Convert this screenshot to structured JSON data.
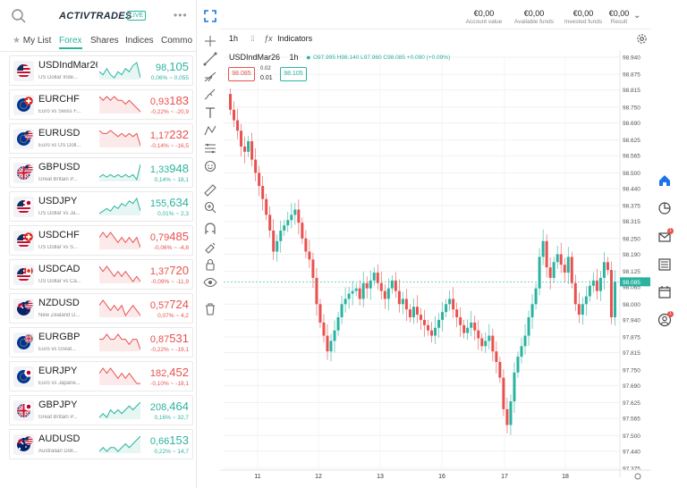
{
  "header": {
    "logo": "ACTIVTRADES",
    "live": "LIVE"
  },
  "tabs": [
    {
      "label": "My List",
      "active": false
    },
    {
      "label": "Forex",
      "active": true
    },
    {
      "label": "Shares",
      "active": false
    },
    {
      "label": "Indices",
      "active": false
    },
    {
      "label": "Commo",
      "active": false
    }
  ],
  "instruments": [
    {
      "symbol": "USDIndMar26",
      "desc": "US Dollar Inde...",
      "flags": [
        "us",
        "none"
      ],
      "price_main": "98,",
      "price_big": "105",
      "change": "0,06% ~ 0,055",
      "dir": "up",
      "spark": [
        6,
        5,
        7,
        5,
        4,
        6,
        5,
        7,
        6,
        8,
        9,
        4
      ]
    },
    {
      "symbol": "EURCHF",
      "desc": "Euro vs Swiss F...",
      "flags": [
        "eu",
        "ch"
      ],
      "price_main": "0,93",
      "price_big": "183",
      "change": "-0,22% ~ -20,9",
      "dir": "down",
      "spark": [
        8,
        7,
        8,
        7,
        8,
        7,
        7,
        6,
        7,
        6,
        5,
        4
      ]
    },
    {
      "symbol": "EURUSD",
      "desc": "Euro vs US Doll...",
      "flags": [
        "eu",
        "us"
      ],
      "price_main": "1,17",
      "price_big": "232",
      "change": "-0,14% ~ -16,5",
      "dir": "down",
      "spark": [
        8,
        7,
        7,
        8,
        7,
        6,
        7,
        6,
        7,
        6,
        7,
        3
      ]
    },
    {
      "symbol": "GBPUSD",
      "desc": "Great Britain P...",
      "flags": [
        "gb",
        "us"
      ],
      "price_main": "1,33",
      "price_big": "948",
      "change": "0,14% ~ 18,1",
      "dir": "up",
      "spark": [
        4,
        5,
        4,
        5,
        4,
        5,
        4,
        5,
        4,
        5,
        3,
        9
      ]
    },
    {
      "symbol": "USDJPY",
      "desc": "US Dollar vs Ja...",
      "flags": [
        "us",
        "jp"
      ],
      "price_main": "155,",
      "price_big": "634",
      "change": "0,01% ~ 2,3",
      "dir": "up",
      "spark": [
        3,
        4,
        5,
        4,
        6,
        5,
        7,
        6,
        8,
        7,
        9,
        4
      ]
    },
    {
      "symbol": "USDCHF",
      "desc": "US Dollar vs S...",
      "flags": [
        "us",
        "ch"
      ],
      "price_main": "0,79",
      "price_big": "485",
      "change": "-0,06% ~ -4,8",
      "dir": "down",
      "spark": [
        6,
        7,
        6,
        7,
        6,
        5,
        6,
        5,
        6,
        5,
        6,
        4
      ]
    },
    {
      "symbol": "USDCAD",
      "desc": "US Dollar vs Ca...",
      "flags": [
        "us",
        "ca"
      ],
      "price_main": "1,37",
      "price_big": "720",
      "change": "-0,09% ~ -11,9",
      "dir": "down",
      "spark": [
        8,
        7,
        8,
        7,
        6,
        7,
        6,
        7,
        6,
        5,
        6,
        5
      ]
    },
    {
      "symbol": "NZDUSD",
      "desc": "New Zealand D...",
      "flags": [
        "nz",
        "us"
      ],
      "price_main": "0,57",
      "price_big": "724",
      "change": "0,07% ~ 4,2",
      "dir": "down",
      "spark": [
        7,
        8,
        7,
        6,
        7,
        6,
        7,
        5,
        6,
        7,
        6,
        5
      ]
    },
    {
      "symbol": "EURGBP",
      "desc": "Euro vs Great...",
      "flags": [
        "eu",
        "gb"
      ],
      "price_main": "0,87",
      "price_big": "531",
      "change": "-0,22% ~ -19,1",
      "dir": "down",
      "spark": [
        7,
        7,
        8,
        7,
        7,
        8,
        7,
        7,
        6,
        7,
        7,
        5
      ]
    },
    {
      "symbol": "EURJPY",
      "desc": "Euro vs Japane...",
      "flags": [
        "eu",
        "jp"
      ],
      "price_main": "182,",
      "price_big": "452",
      "change": "-0,10% ~ -18,1",
      "dir": "down",
      "spark": [
        7,
        8,
        7,
        8,
        7,
        6,
        7,
        6,
        7,
        6,
        5,
        5
      ]
    },
    {
      "symbol": "GBPJPY",
      "desc": "Great Britain P...",
      "flags": [
        "gb",
        "jp"
      ],
      "price_main": "208,",
      "price_big": "464",
      "change": "0,16% ~ 32,7",
      "dir": "up",
      "spark": [
        4,
        5,
        4,
        6,
        5,
        6,
        5,
        6,
        7,
        6,
        7,
        8
      ]
    },
    {
      "symbol": "AUDUSD",
      "desc": "Australian Doll...",
      "flags": [
        "au",
        "us"
      ],
      "price_main": "0,66",
      "price_big": "153",
      "change": "0,22% ~ 14,7",
      "dir": "up",
      "spark": [
        4,
        5,
        4,
        5,
        5,
        4,
        5,
        6,
        5,
        6,
        7,
        8
      ]
    }
  ],
  "account": [
    {
      "value": "€0,00",
      "label": "Account value"
    },
    {
      "value": "€0,00",
      "label": "Available funds"
    },
    {
      "value": "€0,00",
      "label": "Invested funds"
    },
    {
      "value": "€0,00",
      "label": "Result"
    }
  ],
  "chart_toolbar": {
    "timeframe": "1h",
    "indicators_label": "Indicators"
  },
  "chart_legend": {
    "symbol": "USDIndMar26",
    "timeframe": "1h",
    "ohlc": "O97.995  H98.140  L97.960  C98.085  +0.090 (+0.09%)",
    "sell": "98.085",
    "buy": "98.105",
    "spread_top": "0.02",
    "spread_bottom": "0.01"
  },
  "colors": {
    "up": "#2bb3a0",
    "down": "#e8514f",
    "accent": "#1a73e8"
  },
  "chart_data": {
    "type": "candlestick",
    "title": "",
    "xlabel": "",
    "ylabel": "",
    "x_ticks": [
      "11",
      "12",
      "13",
      "16",
      "17",
      "18"
    ],
    "y_ticks": [
      "98.940",
      "98.875",
      "98.815",
      "98.750",
      "98.690",
      "98.625",
      "98.565",
      "98.500",
      "98.440",
      "98.375",
      "98.315",
      "98.250",
      "98.190",
      "98.125",
      "98.065",
      "98.000",
      "97.940",
      "97.875",
      "97.815",
      "97.750",
      "97.690",
      "97.625",
      "97.565",
      "97.500",
      "97.440",
      "97.375"
    ],
    "ylim": [
      97.375,
      98.94
    ],
    "current_price": "98.085",
    "close": [
      98.74,
      98.7,
      98.66,
      98.6,
      98.58,
      98.62,
      98.55,
      98.5,
      98.45,
      98.4,
      98.34,
      98.28,
      98.2,
      98.24,
      98.28,
      98.3,
      98.32,
      98.34,
      98.36,
      98.31,
      98.25,
      98.2,
      98.17,
      98.1,
      98.0,
      97.93,
      97.88,
      97.82,
      97.86,
      97.9,
      97.95,
      98.0,
      98.02,
      98.04,
      98.05,
      98.06,
      98.02,
      98.08,
      98.06,
      98.09,
      98.12,
      98.08,
      98.05,
      98.02,
      98.06,
      98.09,
      98.05,
      98.0,
      98.02,
      97.98,
      97.95,
      97.99,
      97.96,
      97.94,
      97.92,
      97.9,
      97.88,
      97.91,
      97.94,
      97.97,
      98.0,
      98.02,
      97.98,
      97.95,
      97.92,
      97.89,
      97.91,
      97.93,
      97.9,
      97.87,
      97.84,
      97.86,
      97.88,
      97.82,
      97.78,
      97.72,
      97.6,
      97.54,
      97.63,
      97.74,
      97.8,
      97.84,
      97.88,
      97.95,
      98.0,
      98.06,
      98.18,
      98.24,
      98.14,
      98.1,
      98.16,
      98.19,
      98.15,
      98.12,
      98.18,
      98.08,
      98.0,
      97.96,
      98.0,
      98.03,
      98.07,
      98.09,
      98.05,
      98.1,
      98.16,
      98.13,
      97.95,
      98.085
    ],
    "candles": 108
  },
  "sidebar_right": [
    {
      "name": "home-icon",
      "active": true
    },
    {
      "name": "portfolio-icon",
      "active": false
    },
    {
      "name": "messages-icon",
      "badge": "1"
    },
    {
      "name": "news-icon",
      "active": false
    },
    {
      "name": "calendar-icon",
      "active": false
    },
    {
      "name": "profile-icon",
      "badge": "1"
    }
  ]
}
